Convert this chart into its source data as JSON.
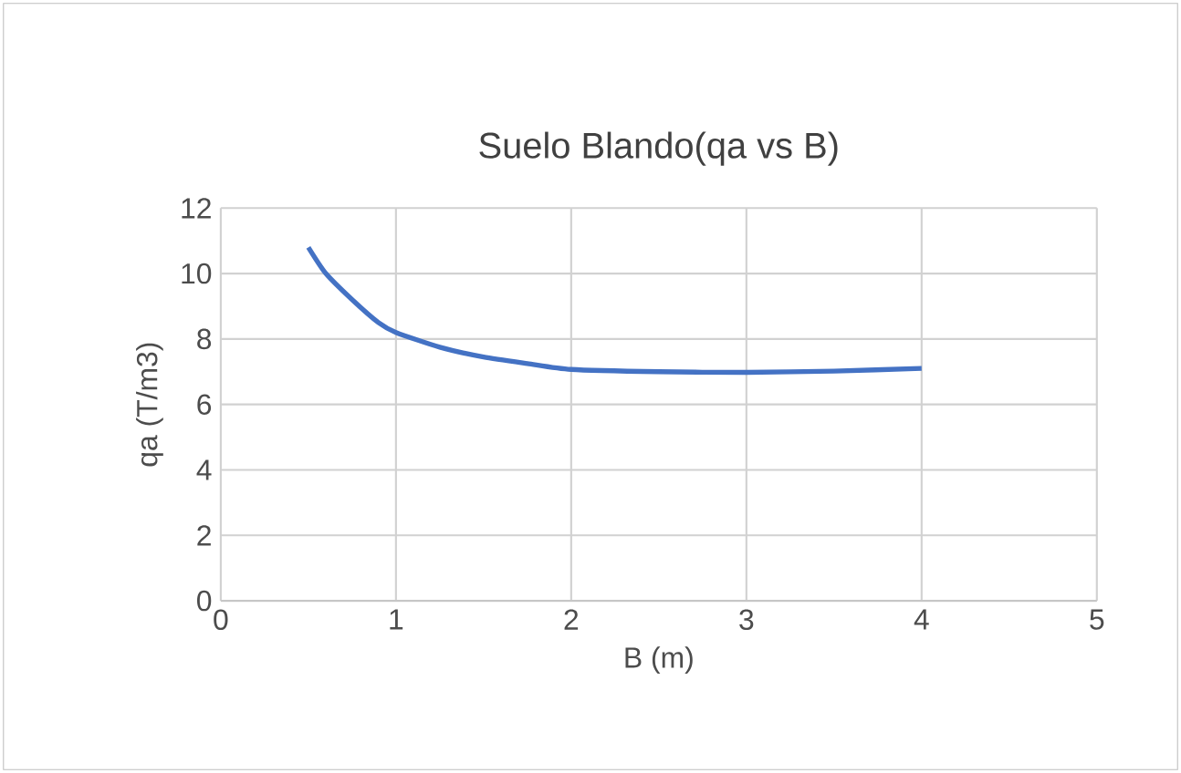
{
  "chart_data": {
    "type": "line",
    "title": "Suelo Blando(qa vs B)",
    "xlabel": "B (m)",
    "ylabel": "qa (T/m3)",
    "x": [
      0.5,
      0.6,
      0.75,
      0.9,
      1,
      1.25,
      1.5,
      1.75,
      2,
      2.5,
      3,
      3.5,
      4
    ],
    "series": [
      {
        "color": "#4472c4",
        "values": [
          10.8,
          10.0,
          9.2,
          8.5,
          8.2,
          7.75,
          7.45,
          7.25,
          7.07,
          7.0,
          6.98,
          7.02,
          7.1
        ]
      }
    ],
    "xlim": [
      0,
      5
    ],
    "ylim": [
      0,
      12
    ],
    "xticks": [
      0,
      1,
      2,
      3,
      4,
      5
    ],
    "yticks": [
      0,
      2,
      4,
      6,
      8,
      10,
      12
    ],
    "grid": true,
    "marker": "none",
    "line_style": "solid"
  }
}
